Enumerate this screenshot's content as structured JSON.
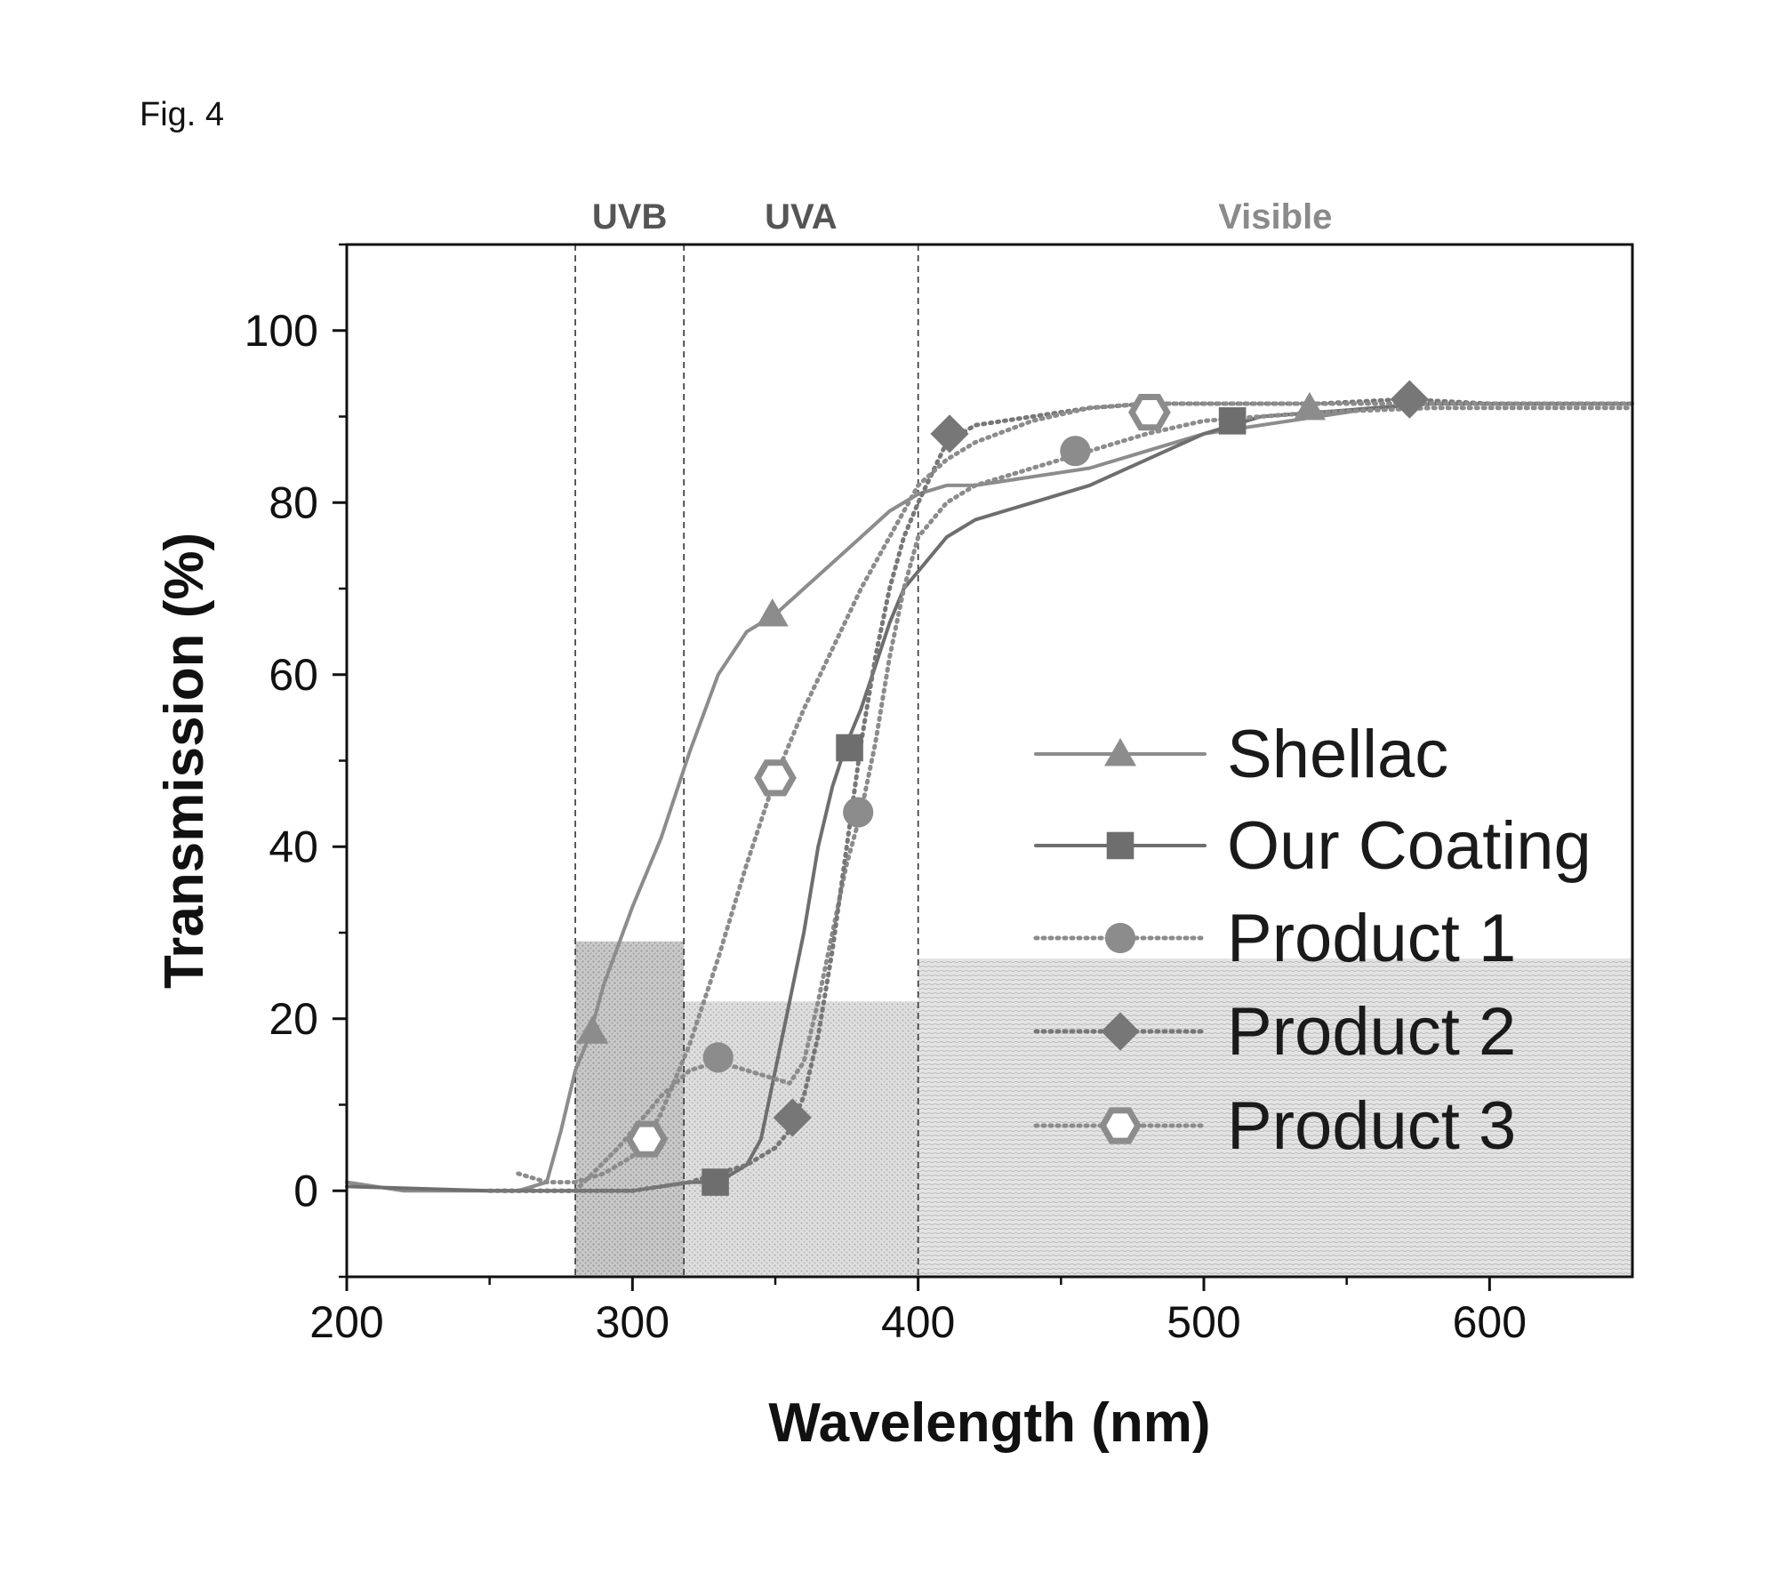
{
  "figure_label": "Fig. 4",
  "chart_data": {
    "type": "line",
    "xlabel": "Wavelength (nm)",
    "ylabel": "Transmission (%)",
    "xlim": [
      200,
      650
    ],
    "ylim": [
      -10,
      110
    ],
    "xticks": [
      200,
      300,
      400,
      500,
      600
    ],
    "yticks": [
      0,
      20,
      40,
      60,
      80,
      100
    ],
    "grid": false,
    "legend_position": "right-center",
    "regions": [
      {
        "name": "UVB",
        "range": [
          280,
          318
        ],
        "color": "#555555"
      },
      {
        "name": "UVA",
        "range": [
          318,
          400
        ],
        "color": "#555555"
      },
      {
        "name": "Visible",
        "range": [
          400,
          650
        ],
        "color": "#8a8a8a"
      }
    ],
    "boundaries": [
      280,
      318,
      400
    ],
    "series": [
      {
        "name": "Shellac",
        "style": "solid",
        "marker": "triangle",
        "color": "#8c8c8c",
        "x": [
          200,
          220,
          240,
          260,
          270,
          275,
          280,
          285,
          290,
          300,
          310,
          320,
          330,
          340,
          350,
          360,
          370,
          380,
          390,
          400,
          410,
          420,
          440,
          460,
          480,
          500,
          520,
          540,
          560,
          580,
          600,
          620,
          650
        ],
        "y": [
          1,
          0,
          0,
          0,
          1,
          7,
          14,
          18,
          24,
          33,
          41,
          51,
          60,
          65,
          67,
          70,
          73,
          76,
          79,
          81,
          82,
          82,
          83,
          84,
          86,
          88,
          89,
          90,
          91,
          91.5,
          91.5,
          91.5,
          91.5
        ],
        "marker_x": [
          286,
          349,
          537
        ],
        "marker_y": [
          18.5,
          67,
          91
        ]
      },
      {
        "name": "Our Coating",
        "style": "solid",
        "marker": "square",
        "color": "#6e6e6e",
        "x": [
          200,
          250,
          300,
          320,
          330,
          340,
          345,
          350,
          355,
          360,
          365,
          370,
          375,
          380,
          385,
          390,
          395,
          400,
          410,
          420,
          440,
          460,
          480,
          500,
          520,
          540,
          560,
          580,
          600,
          650
        ],
        "y": [
          0.5,
          0,
          0,
          1,
          1,
          3,
          6,
          14,
          22,
          30,
          40,
          47,
          52,
          56,
          61,
          66,
          70,
          72,
          76,
          78,
          80,
          82,
          85,
          88,
          90,
          90.5,
          91,
          91.5,
          91.5,
          91.5
        ],
        "marker_x": [
          329,
          376,
          510
        ],
        "marker_y": [
          1,
          51.5,
          89.5
        ]
      },
      {
        "name": "Product 1",
        "style": "dotted",
        "marker": "circle",
        "color": "#8c8c8c",
        "x": [
          255,
          280,
          295,
          310,
          320,
          330,
          340,
          350,
          355,
          360,
          365,
          370,
          375,
          380,
          385,
          390,
          395,
          400,
          410,
          420,
          440,
          460,
          480,
          500,
          540,
          580,
          650
        ],
        "y": [
          0,
          0,
          5,
          11,
          14,
          15,
          14,
          13,
          12.5,
          15,
          22,
          30,
          38,
          44,
          52,
          62,
          70,
          76,
          80,
          82,
          84,
          86,
          88,
          89.5,
          90.5,
          91,
          91
        ],
        "marker_x": [
          330,
          379,
          455
        ],
        "marker_y": [
          15.5,
          44,
          86
        ]
      },
      {
        "name": "Product 2",
        "style": "dotted",
        "marker": "diamond",
        "color": "#777777",
        "x": [
          250,
          300,
          320,
          340,
          350,
          355,
          360,
          365,
          370,
          375,
          380,
          385,
          390,
          395,
          400,
          410,
          420,
          440,
          460,
          480,
          500,
          540,
          570,
          600,
          650
        ],
        "y": [
          0,
          0,
          1,
          3,
          5,
          7,
          11,
          18,
          28,
          40,
          52,
          62,
          70,
          76,
          80,
          87,
          89,
          90,
          91,
          91.5,
          91.5,
          91.5,
          92,
          91.5,
          91.5
        ],
        "marker_x": [
          356,
          411,
          572
        ],
        "marker_y": [
          8.5,
          88,
          92
        ]
      },
      {
        "name": "Product 3",
        "style": "dotted",
        "marker": "hexagon-open",
        "color": "#8c8c8c",
        "x": [
          260,
          270,
          280,
          290,
          300,
          305,
          310,
          320,
          330,
          340,
          350,
          360,
          370,
          380,
          390,
          400,
          410,
          420,
          440,
          460,
          480,
          500,
          540,
          580,
          650
        ],
        "y": [
          2,
          1,
          1,
          2,
          4,
          6,
          9,
          17,
          27,
          38,
          48,
          56,
          63,
          70,
          76,
          82,
          85,
          87,
          89.5,
          91,
          91.5,
          91.5,
          91.5,
          91.5,
          91.5
        ],
        "marker_x": [
          305,
          350,
          481
        ],
        "marker_y": [
          6,
          48,
          90.5
        ]
      }
    ]
  }
}
